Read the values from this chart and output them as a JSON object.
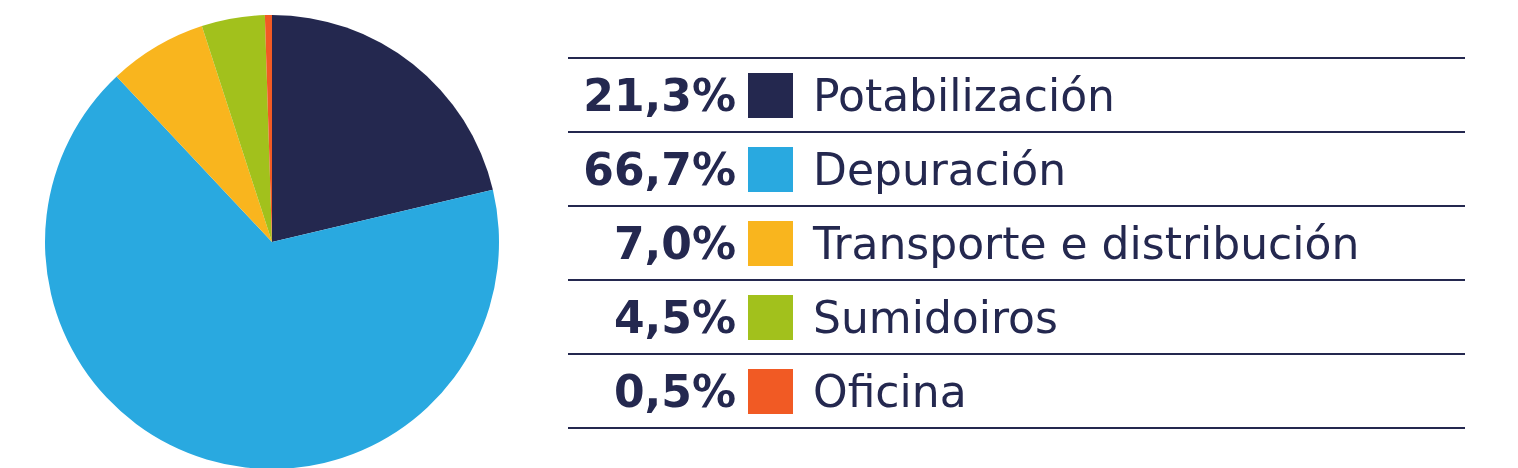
{
  "chart_data": {
    "type": "pie",
    "categories": [
      "Potabilización",
      "Depuración",
      "Transporte e distribución",
      "Sumidoiros",
      "Oficina"
    ],
    "values": [
      21.3,
      66.7,
      7.0,
      4.5,
      0.5
    ],
    "value_labels": [
      "21,3%",
      "66,7%",
      "7,0%",
      "4,5%",
      "0,5%"
    ],
    "colors": [
      "#24284f",
      "#29a9e0",
      "#f9b51e",
      "#a2c11c",
      "#f15a24"
    ],
    "legend": "right"
  }
}
